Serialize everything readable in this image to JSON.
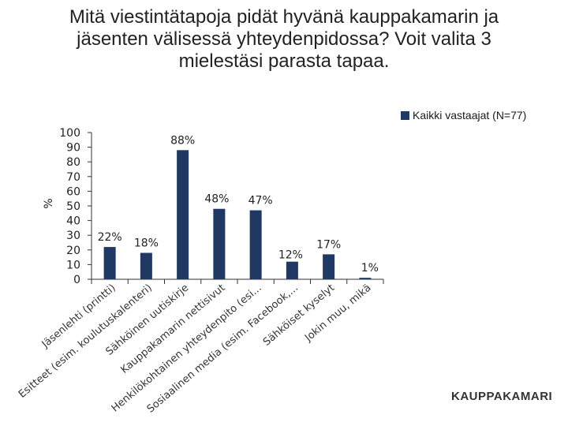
{
  "title_lines": [
    "Mitä viestintätapoja pidät hyvänä kauppakamarin ja",
    "jäsenten välisessä yhteydenpidossa? Voit valita 3",
    "mielestäsi parasta tapaa."
  ],
  "logo": "KAUPPAKAMARI",
  "colors": {
    "bar": "#1f3864",
    "axis": "#333333"
  },
  "chart_data": {
    "type": "bar",
    "title": "Mitä viestintätapoja pidät hyvänä kauppakamarin ja jäsenten välisessä yhteydenpidossa? Voit valita 3 mielestäsi parasta tapaa.",
    "xlabel": "",
    "ylabel": "%",
    "ylim": [
      0,
      100
    ],
    "yticks": [
      0,
      10,
      20,
      30,
      40,
      50,
      60,
      70,
      80,
      90,
      100
    ],
    "legend": "top-right",
    "grid": false,
    "categories": [
      "Jäsenlehti (printti)",
      "Esitteet (esim. koulutuskalenteri)",
      "Sähköinen uutiskirje",
      "Kauppakamarin nettisivut",
      "Henkilökohtainen yhteydenpito (esi...",
      "Sosiaalinen media (esim. Facebook,...",
      "Sähköiset kyselyt",
      "Jokin muu, mikä"
    ],
    "series": [
      {
        "name": "Kaikki vastaajat (N=77)",
        "values": [
          22,
          18,
          88,
          48,
          47,
          12,
          17,
          1
        ],
        "labels": [
          "22%",
          "18%",
          "88%",
          "48%",
          "47%",
          "12%",
          "17%",
          "1%"
        ]
      }
    ]
  }
}
